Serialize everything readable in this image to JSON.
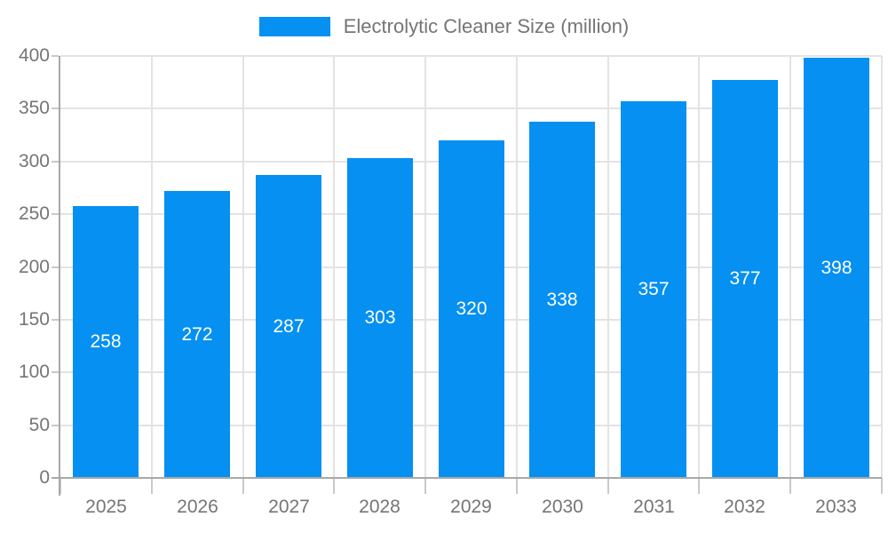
{
  "legend": {
    "label": "Electrolytic Cleaner Size (million)",
    "position": "top"
  },
  "colors": {
    "bar": "#0590F2",
    "grid": "#e3e3e3",
    "axis": "#a8a8a8",
    "tick": "#c9c9c9",
    "text": "#757575",
    "value_label": "#ffffff",
    "background": "#ffffff"
  },
  "chart_data": {
    "type": "bar",
    "title": "Electrolytic Cleaner Size (million)",
    "categories": [
      "2025",
      "2026",
      "2027",
      "2028",
      "2029",
      "2030",
      "2031",
      "2032",
      "2033"
    ],
    "values": [
      258,
      272,
      287,
      303,
      320,
      338,
      357,
      377,
      398
    ],
    "xlabel": "",
    "ylabel": "",
    "ylim": [
      0,
      400
    ],
    "yticks": [
      0,
      50,
      100,
      150,
      200,
      250,
      300,
      350,
      400
    ],
    "grid": true,
    "legend_position": "top",
    "value_label_position": "inside-center",
    "value_label_color": "#ffffff"
  }
}
